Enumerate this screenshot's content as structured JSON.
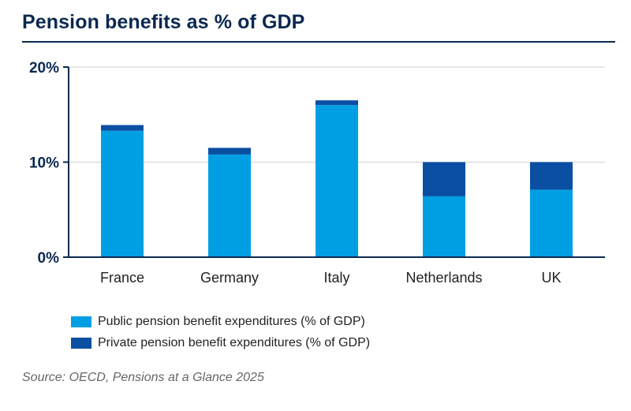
{
  "title": "Pension benefits as % of GDP",
  "source": "Source: OECD, Pensions at a Glance 2025",
  "colors": {
    "public": "#009fe3",
    "private": "#0b4fa2",
    "axis": "#0b2850",
    "grid": "#d0d0d0"
  },
  "chart_data": {
    "type": "bar",
    "stacked": true,
    "categories": [
      "France",
      "Germany",
      "Italy",
      "Netherlands",
      "UK"
    ],
    "series": [
      {
        "name": "Public pension benefit expenditures (% of GDP)",
        "values": [
          13.3,
          10.8,
          16.0,
          6.4,
          7.1
        ]
      },
      {
        "name": "Private pension benefit expenditures (% of GDP)",
        "values": [
          0.6,
          0.7,
          0.5,
          3.6,
          2.9
        ]
      }
    ],
    "y_ticks": [
      "0%",
      "10%",
      "20%"
    ],
    "ylim": [
      0,
      20
    ],
    "grid": true,
    "legend_position": "bottom-left"
  }
}
